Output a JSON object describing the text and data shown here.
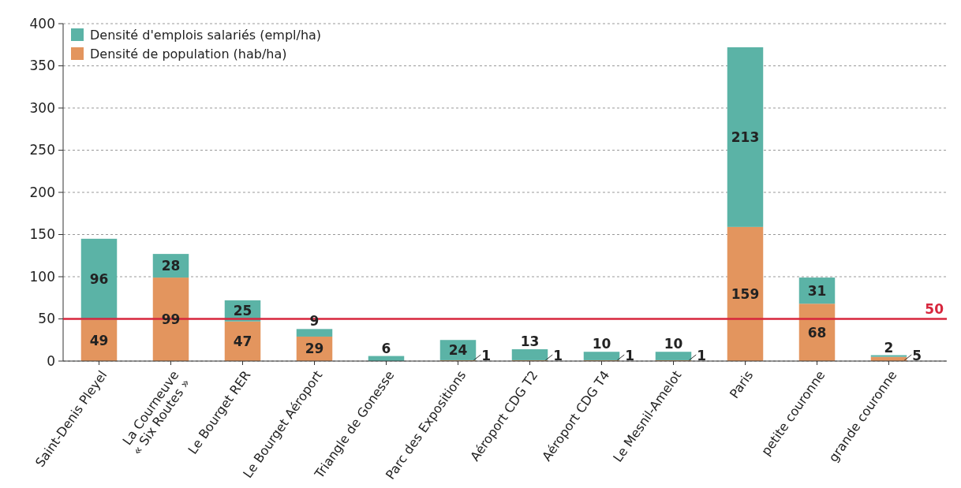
{
  "chart_data": {
    "type": "bar",
    "stacked": true,
    "categories": [
      "Saint-Denis Pleyel",
      "La Courneuve\n« Six Routes »",
      "Le Bourget RER",
      "Le Bourget Aéroport",
      "Triangle de Gonesse",
      "Parc des Expositions",
      "Aéroport CDG T2",
      "Aéroport CDG T4",
      "Le Mesnil-Amelot",
      "Paris",
      "petite couronne",
      "grande couronne"
    ],
    "series": [
      {
        "name": "Densité de population (hab/ha)",
        "color": "#e3955e",
        "values": [
          49,
          99,
          47,
          29,
          null,
          1,
          1,
          1,
          1,
          159,
          68,
          5
        ]
      },
      {
        "name": "Densité d'emplois salariés (empl/ha)",
        "color": "#5bb3a6",
        "values": [
          96,
          28,
          25,
          9,
          6,
          24,
          13,
          10,
          10,
          213,
          31,
          2
        ]
      }
    ],
    "ylim": [
      0,
      400
    ],
    "yticks": [
      0,
      50,
      100,
      150,
      200,
      250,
      300,
      350,
      400
    ],
    "grid": "y",
    "legend": "top left",
    "data_labels": true,
    "ref_lines": [
      {
        "axis": "y",
        "value": 50,
        "label": "50",
        "color": "#d7263d"
      }
    ]
  }
}
